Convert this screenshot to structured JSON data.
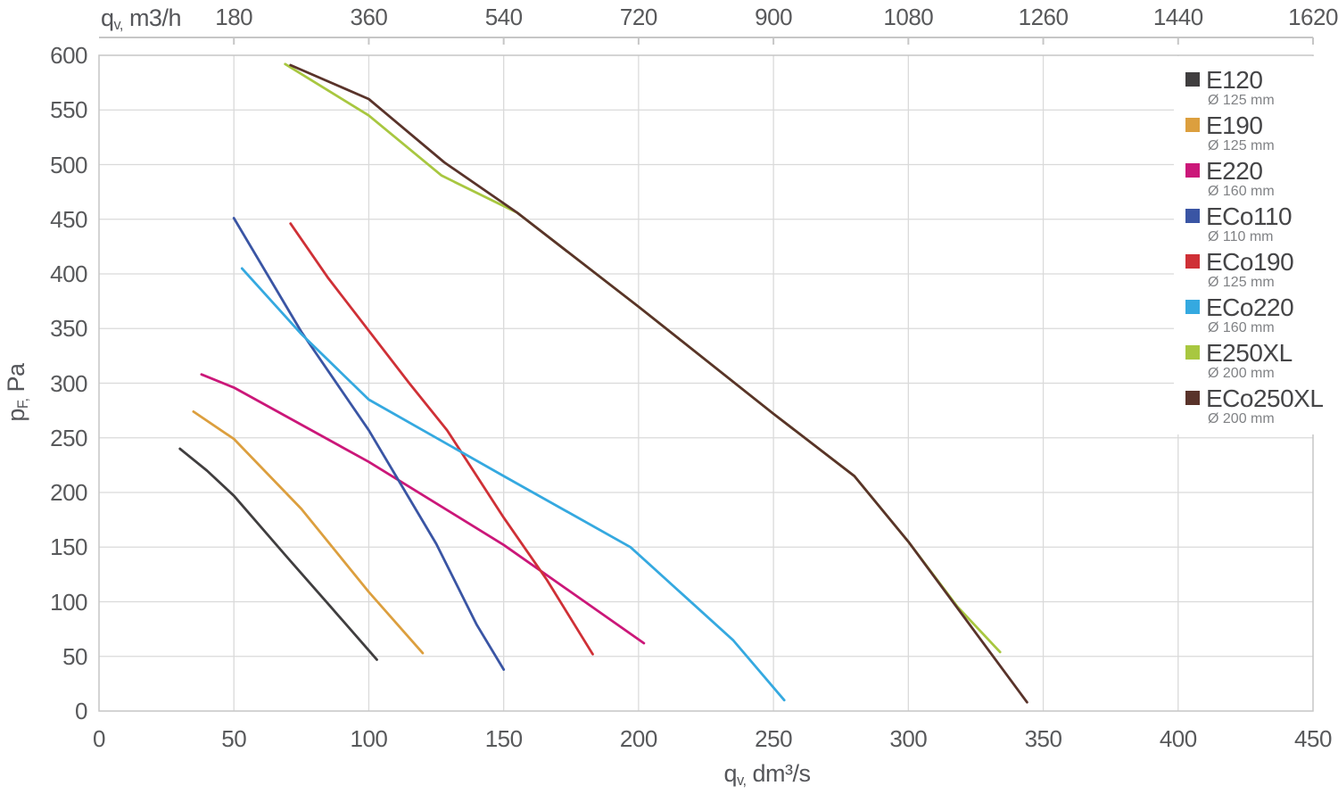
{
  "chart_data": {
    "type": "line",
    "title": "",
    "grid": true,
    "legend_position": "top-right",
    "top_axis": {
      "title_symbol": "q",
      "title_sub": "v,",
      "title_rest": "m3/h",
      "ticks": [
        180,
        360,
        540,
        720,
        900,
        1080,
        1260,
        1440,
        1620
      ],
      "dm3s_per_m3h": 0.2777778
    },
    "bottom_axis": {
      "title_symbol": "q",
      "title_sub": "v,",
      "title_rest": "dm³/s",
      "ticks": [
        0,
        50,
        100,
        150,
        200,
        250,
        300,
        350,
        400,
        450
      ],
      "range": [
        0,
        450
      ]
    },
    "y_axis": {
      "title_symbol": "p",
      "title_sub": "F,",
      "title_rest": "Pa",
      "ticks": [
        0,
        50,
        100,
        150,
        200,
        250,
        300,
        350,
        400,
        450,
        500,
        550,
        600
      ],
      "range": [
        0,
        600
      ]
    },
    "series": [
      {
        "name": "E120",
        "diameter": "Ø 125 mm",
        "color": "#403e3f",
        "points": [
          [
            30,
            240
          ],
          [
            40,
            220
          ],
          [
            50,
            197
          ],
          [
            70,
            140
          ],
          [
            86,
            95
          ],
          [
            103,
            47
          ]
        ]
      },
      {
        "name": "E190",
        "diameter": "Ø 125 mm",
        "color": "#dc9f3e",
        "points": [
          [
            35,
            274
          ],
          [
            50,
            249
          ],
          [
            75,
            185
          ],
          [
            100,
            109
          ],
          [
            120,
            53
          ]
        ]
      },
      {
        "name": "E220",
        "diameter": "Ø 160 mm",
        "color": "#cb1779",
        "points": [
          [
            38,
            308
          ],
          [
            50,
            296
          ],
          [
            100,
            228
          ],
          [
            150,
            152
          ],
          [
            202,
            62
          ]
        ]
      },
      {
        "name": "ECo110",
        "diameter": "Ø 110 mm",
        "color": "#3a55a4",
        "points": [
          [
            50,
            451
          ],
          [
            75,
            347
          ],
          [
            100,
            257
          ],
          [
            125,
            153
          ],
          [
            140,
            79
          ],
          [
            150,
            38
          ]
        ]
      },
      {
        "name": "ECo190",
        "diameter": "Ø 125 mm",
        "color": "#cf3036",
        "points": [
          [
            71,
            446
          ],
          [
            85,
            396
          ],
          [
            115,
            300
          ],
          [
            129,
            257
          ],
          [
            150,
            177
          ],
          [
            166,
            120
          ],
          [
            183,
            52
          ]
        ]
      },
      {
        "name": "ECo220",
        "diameter": "Ø 160 mm",
        "color": "#35a9e0",
        "points": [
          [
            53,
            405
          ],
          [
            75,
            345
          ],
          [
            100,
            285
          ],
          [
            150,
            215
          ],
          [
            197,
            150
          ],
          [
            235,
            65
          ],
          [
            254,
            10
          ]
        ]
      },
      {
        "name": "E250XL",
        "diameter": "Ø 200 mm",
        "color": "#a8c740",
        "points": [
          [
            69,
            592
          ],
          [
            100,
            545
          ],
          [
            127,
            490
          ],
          [
            155,
            456
          ],
          [
            200,
            370
          ],
          [
            250,
            272
          ],
          [
            280,
            215
          ],
          [
            300,
            155
          ],
          [
            318,
            96
          ],
          [
            334,
            54
          ]
        ]
      },
      {
        "name": "ECo250XL",
        "diameter": "Ø 200 mm",
        "color": "#59332a",
        "points": [
          [
            71,
            591
          ],
          [
            100,
            560
          ],
          [
            128,
            502
          ],
          [
            155,
            456
          ],
          [
            200,
            370
          ],
          [
            250,
            272
          ],
          [
            280,
            215
          ],
          [
            300,
            155
          ],
          [
            344,
            8
          ]
        ]
      }
    ],
    "colors": {
      "gridline": "#dadada",
      "plot_border": "#c6c6c6",
      "top_axis_line": "#c6c6c6",
      "tick_text": "#58595b",
      "legend_text": "#454547",
      "legend_subtext": "#808285",
      "background": "#ffffff"
    }
  }
}
